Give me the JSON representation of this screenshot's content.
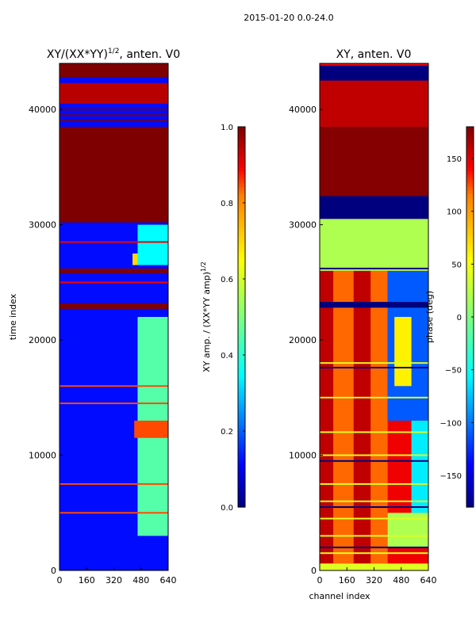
{
  "figure": {
    "suptitle": "2015-01-20 0.0-24.0"
  },
  "colors": {
    "jet_dark_blue": "#00007f",
    "jet_blue": "#0000ff",
    "jet_cyan": "#00ffff",
    "jet_green": "#7fff7f",
    "jet_yellow": "#ffff00",
    "jet_orange": "#ff7f00",
    "jet_red": "#ff0000",
    "jet_dark_red": "#7f0000"
  },
  "chart_data": [
    {
      "type": "heatmap",
      "panel": "left",
      "title_main": "XY/(XX*YY)",
      "title_sup": "1/2",
      "title_tail": ", anten. V0",
      "xlabel": "",
      "ylabel": "time index",
      "xlim": [
        0,
        640
      ],
      "ylim": [
        0,
        44000
      ],
      "xticks": [
        0,
        160,
        320,
        480,
        640
      ],
      "yticks": [
        0,
        10000,
        20000,
        30000,
        40000
      ],
      "xtick_labels": [
        "0",
        "160",
        "320",
        "480",
        "640"
      ],
      "ytick_labels": [
        "0",
        "10000",
        "20000",
        "30000",
        "40000"
      ],
      "colormap": "jet",
      "colorbar": {
        "label_main": "XY amp. / (XX*YY amp)",
        "label_sup": "1/2",
        "vmin": 0.0,
        "vmax": 1.0,
        "ticks": [
          0.0,
          0.2,
          0.4,
          0.6,
          0.8,
          1.0
        ],
        "tick_labels": [
          "0.0",
          "0.2",
          "0.4",
          "0.6",
          "0.8",
          "1.0"
        ]
      },
      "base_value": 0.12,
      "regions": [
        {
          "t0": 30200,
          "t1": 38500,
          "value": 1.0
        },
        {
          "t0": 42800,
          "t1": 44000,
          "value": 1.0
        },
        {
          "t0": 40500,
          "t1": 42300,
          "value": 0.95
        },
        {
          "t0": 22700,
          "t1": 23200,
          "value": 1.0
        },
        {
          "t0": 25800,
          "t1": 26200,
          "value": 1.0
        }
      ],
      "lines": [
        {
          "t": 39000,
          "value": 1.0
        },
        {
          "t": 39500,
          "value": 1.0
        },
        {
          "t": 40000,
          "value": 1.0
        },
        {
          "t": 28500,
          "value": 0.9
        },
        {
          "t": 25000,
          "value": 0.9
        },
        {
          "t": 16000,
          "value": 0.85
        },
        {
          "t": 14500,
          "value": 0.85
        },
        {
          "t": 7500,
          "value": 0.85
        },
        {
          "t": 5000,
          "value": 0.85
        }
      ],
      "features": [
        {
          "c0": 460,
          "c1": 640,
          "t0": 3000,
          "t1": 22000,
          "value": 0.45
        },
        {
          "c0": 440,
          "c1": 640,
          "t0": 11500,
          "t1": 13000,
          "value": 0.85
        },
        {
          "c0": 430,
          "c1": 470,
          "t0": 26500,
          "t1": 27500,
          "value": 0.7
        },
        {
          "c0": 460,
          "c1": 640,
          "t0": 26500,
          "t1": 30000,
          "value": 0.35
        }
      ]
    },
    {
      "type": "heatmap",
      "panel": "right",
      "title_main": "XY, anten. V0",
      "xlabel": "channel index",
      "ylabel": "",
      "xlim": [
        0,
        640
      ],
      "ylim": [
        0,
        44000
      ],
      "xticks": [
        0,
        160,
        320,
        480,
        640
      ],
      "yticks": [
        0,
        10000,
        20000,
        30000,
        40000
      ],
      "xtick_labels": [
        "0",
        "160",
        "320",
        "480",
        "640"
      ],
      "ytick_labels": [
        "0",
        "10000",
        "20000",
        "30000",
        "40000"
      ],
      "colormap": "jet",
      "colorbar": {
        "label_main": "phase (deg)",
        "vmin": -180,
        "vmax": 180,
        "ticks": [
          -150,
          -100,
          -50,
          0,
          50,
          100,
          150
        ],
        "tick_labels": [
          "−150",
          "−100",
          "−50",
          "0",
          "50",
          "100",
          "150"
        ]
      },
      "base_value": 145,
      "regions": [
        {
          "t0": 30500,
          "t1": 32500,
          "value": -180
        },
        {
          "t0": 32500,
          "t1": 38500,
          "value": 178
        },
        {
          "t0": 42500,
          "t1": 43800,
          "value": -180
        },
        {
          "t0": 38500,
          "t1": 42500,
          "value": 160
        },
        {
          "t0": 26000,
          "t1": 30500,
          "value": 20
        },
        {
          "t0": 22800,
          "t1": 23300,
          "value": -180
        },
        {
          "t0": 0,
          "t1": 600,
          "value": 40
        }
      ],
      "lines": [
        {
          "t": 26200,
          "value": -180
        },
        {
          "t": 18000,
          "value": 40
        },
        {
          "t": 17600,
          "value": -180
        },
        {
          "t": 15000,
          "value": 40
        },
        {
          "t": 12000,
          "value": 40
        },
        {
          "t": 10000,
          "value": 40
        },
        {
          "t": 9500,
          "value": -180
        },
        {
          "t": 7500,
          "value": 40
        },
        {
          "t": 6000,
          "value": 40
        },
        {
          "t": 5500,
          "value": -180
        },
        {
          "t": 4500,
          "value": 40
        },
        {
          "t": 3000,
          "value": 40
        },
        {
          "t": 2000,
          "value": -180
        },
        {
          "t": 1500,
          "value": 40
        }
      ],
      "features": [
        {
          "c0": 0,
          "c1": 80,
          "t0": 600,
          "t1": 26000,
          "value": 160
        },
        {
          "c0": 80,
          "c1": 200,
          "t0": 600,
          "t1": 26000,
          "value": 120
        },
        {
          "c0": 200,
          "c1": 300,
          "t0": 600,
          "t1": 26000,
          "value": 160
        },
        {
          "c0": 300,
          "c1": 400,
          "t0": 600,
          "t1": 26000,
          "value": 120
        },
        {
          "c0": 400,
          "c1": 640,
          "t0": 13000,
          "t1": 26000,
          "value": -110
        },
        {
          "c0": 440,
          "c1": 540,
          "t0": 16000,
          "t1": 22000,
          "value": 60
        },
        {
          "c0": 540,
          "c1": 640,
          "t0": 5000,
          "t1": 13000,
          "value": -60
        },
        {
          "c0": 400,
          "c1": 640,
          "t0": 2000,
          "t1": 5000,
          "value": 20
        }
      ]
    }
  ]
}
